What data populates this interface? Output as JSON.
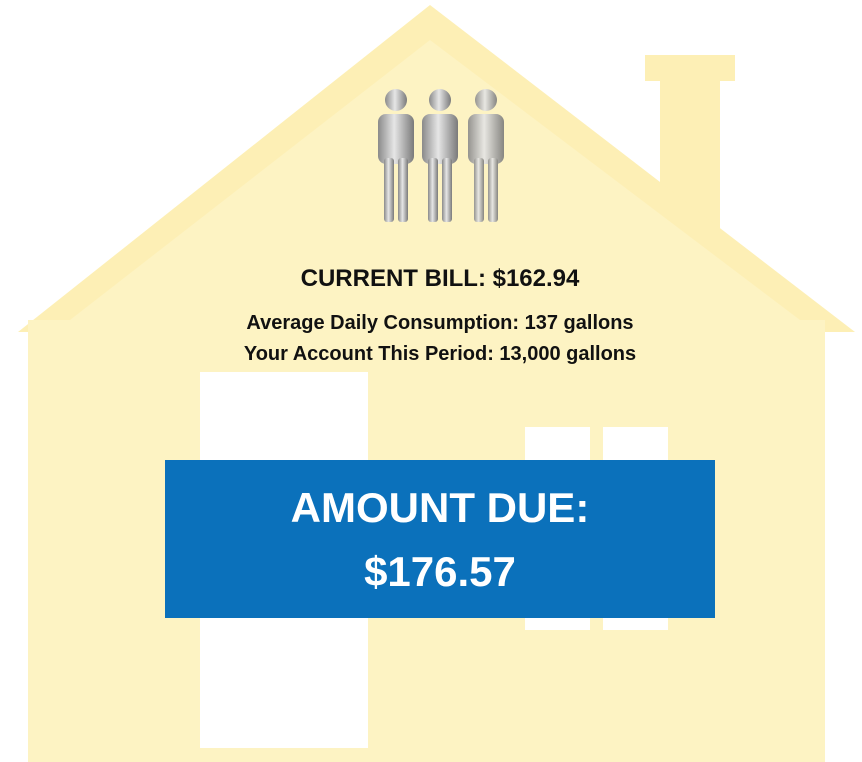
{
  "bill": {
    "current_bill": "CURRENT BILL:  $162.94",
    "average_daily": "Average Daily Consumption:  137 gallons",
    "account_period": "Your Account This Period:  13,000 gallons"
  },
  "amount_due": {
    "label": "AMOUNT DUE:",
    "value": "$176.57"
  }
}
